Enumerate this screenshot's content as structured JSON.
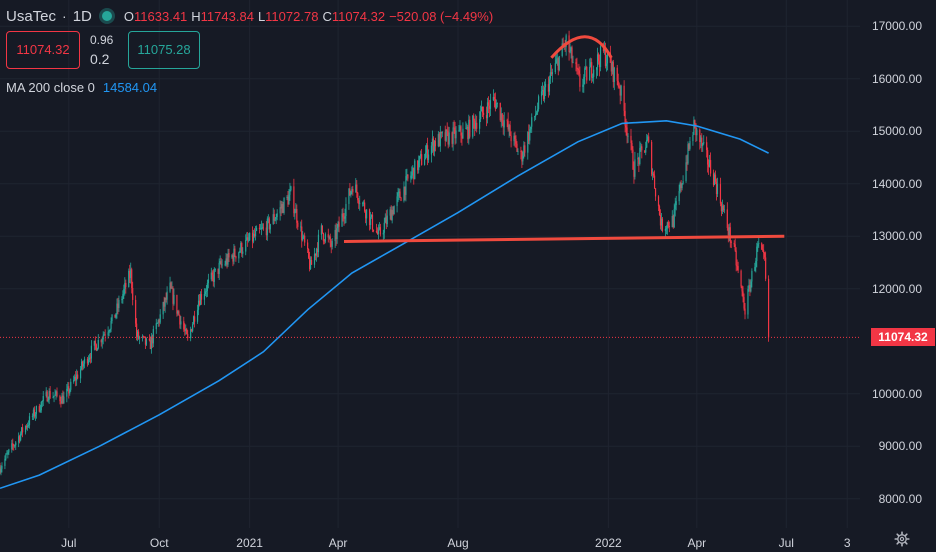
{
  "header": {
    "symbol": "UsaTec",
    "separator": "·",
    "interval": "1D",
    "open_key": "O",
    "open": "11633.41",
    "high_key": "H",
    "high": "11743.84",
    "low_key": "L",
    "low": "11072.78",
    "close_key": "C",
    "close": "11074.32",
    "change": "−520.08 (−4.49%)",
    "live_color": "#26a69a"
  },
  "quote": {
    "bid": "11074.32",
    "ask": "11075.28",
    "spread_small": "0.96",
    "spread_big": "0.2"
  },
  "indicator": {
    "label": "MA 200 close 0",
    "value": "14584.04",
    "color": "#2196f3"
  },
  "last_price_label": "11074.32",
  "colors": {
    "up": "#26a69a",
    "down": "#f23645",
    "background": "#161a25",
    "annotation": "#f04a3e"
  },
  "chart_data": {
    "type": "candlestick",
    "ylim": [
      7500,
      17500
    ],
    "x_range": [
      "2020-04-22",
      "2022-09-14"
    ],
    "y_ticks": [
      {
        "value": 17000,
        "label": "17000.00"
      },
      {
        "value": 16000,
        "label": "16000.00"
      },
      {
        "value": 15000,
        "label": "15000.00"
      },
      {
        "value": 14000,
        "label": "14000.00"
      },
      {
        "value": 13000,
        "label": "13000.00"
      },
      {
        "value": 12000,
        "label": "12000.00"
      },
      {
        "value": 10000,
        "label": "10000.00"
      },
      {
        "value": 9000,
        "label": "9000.00"
      },
      {
        "value": 8000,
        "label": "8000.00"
      }
    ],
    "x_ticks": [
      {
        "date": "2020-07-01",
        "label": "Jul"
      },
      {
        "date": "2020-10-01",
        "label": "Oct"
      },
      {
        "date": "2021-01-01",
        "label": "2021"
      },
      {
        "date": "2021-04-01",
        "label": "Apr"
      },
      {
        "date": "2021-08-01",
        "label": "Aug"
      },
      {
        "date": "2022-01-01",
        "label": "2022"
      },
      {
        "date": "2022-04-01",
        "label": "Apr"
      },
      {
        "date": "2022-07-01",
        "label": "Jul"
      },
      {
        "date": "2022-09-01",
        "label": "3"
      }
    ],
    "price_path": [
      [
        "2020-04-22",
        8600
      ],
      [
        "2020-05-15",
        9300
      ],
      [
        "2020-06-10",
        10000
      ],
      [
        "2020-06-26",
        9900
      ],
      [
        "2020-07-20",
        10700
      ],
      [
        "2020-08-15",
        11400
      ],
      [
        "2020-09-02",
        12300
      ],
      [
        "2020-09-08",
        11100
      ],
      [
        "2020-09-21",
        10900
      ],
      [
        "2020-10-12",
        12000
      ],
      [
        "2020-10-30",
        11000
      ],
      [
        "2020-11-10",
        11800
      ],
      [
        "2020-12-01",
        12400
      ],
      [
        "2020-12-31",
        12900
      ],
      [
        "2021-01-20",
        13200
      ],
      [
        "2021-02-12",
        13800
      ],
      [
        "2021-03-04",
        12400
      ],
      [
        "2021-03-15",
        13100
      ],
      [
        "2021-03-26",
        12800
      ],
      [
        "2021-04-16",
        14000
      ],
      [
        "2021-05-12",
        13000
      ],
      [
        "2021-06-15",
        14200
      ],
      [
        "2021-07-08",
        14800
      ],
      [
        "2021-08-10",
        15000
      ],
      [
        "2021-09-07",
        15600
      ],
      [
        "2021-10-04",
        14500
      ],
      [
        "2021-10-20",
        15400
      ],
      [
        "2021-11-19",
        16700
      ],
      [
        "2021-12-03",
        15900
      ],
      [
        "2021-12-27",
        16500
      ],
      [
        "2022-01-12",
        15900
      ],
      [
        "2022-01-27",
        14300
      ],
      [
        "2022-02-10",
        14800
      ],
      [
        "2022-02-24",
        13200
      ],
      [
        "2022-03-08",
        13300
      ],
      [
        "2022-03-29",
        15100
      ],
      [
        "2022-04-19",
        14100
      ],
      [
        "2022-05-09",
        12700
      ],
      [
        "2022-05-20",
        11600
      ],
      [
        "2022-06-02",
        12800
      ],
      [
        "2022-06-09",
        12500
      ],
      [
        "2022-06-13",
        11074
      ]
    ],
    "ma200_path": [
      [
        "2020-04-22",
        8200
      ],
      [
        "2020-06-01",
        8450
      ],
      [
        "2020-08-01",
        9000
      ],
      [
        "2020-10-01",
        9600
      ],
      [
        "2020-12-01",
        10250
      ],
      [
        "2021-01-15",
        10800
      ],
      [
        "2021-03-01",
        11600
      ],
      [
        "2021-04-15",
        12300
      ],
      [
        "2021-06-01",
        12800
      ],
      [
        "2021-08-01",
        13450
      ],
      [
        "2021-10-01",
        14150
      ],
      [
        "2021-12-01",
        14800
      ],
      [
        "2022-01-15",
        15150
      ],
      [
        "2022-03-01",
        15200
      ],
      [
        "2022-04-01",
        15100
      ],
      [
        "2022-05-15",
        14850
      ],
      [
        "2022-06-13",
        14584
      ]
    ],
    "annotations": {
      "neckline": [
        [
          "2021-04-07",
          12900
        ],
        [
          "2022-06-29",
          13000
        ]
      ],
      "top_arc": [
        [
          "2021-11-04",
          16400
        ],
        [
          "2021-12-08",
          16800
        ],
        [
          "2022-01-04",
          16400
        ]
      ]
    },
    "seed": 7
  }
}
